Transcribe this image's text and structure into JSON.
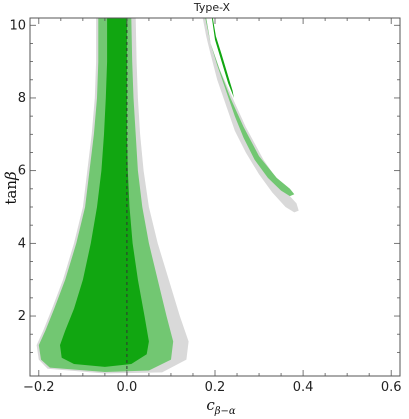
{
  "chart_data": {
    "type": "contour",
    "title": "Type-X",
    "xlabel": "c_{β−α}",
    "xlabel_main": "c",
    "xlabel_sub": "β−α",
    "ylabel": "tanβ",
    "ylabel_main": "tan",
    "ylabel_greek": "β",
    "xlim": [
      -0.22,
      0.62
    ],
    "ylim": [
      0.35,
      10.2
    ],
    "x_ticks": [
      -0.2,
      0.0,
      0.2,
      0.4,
      0.6
    ],
    "x_tick_labels": [
      "−0.2",
      "0.0",
      "0.2",
      "0.4",
      "0.6"
    ],
    "y_ticks": [
      2,
      4,
      6,
      8,
      10
    ],
    "y_tick_labels": [
      "2",
      "4",
      "6",
      "8",
      "10"
    ],
    "reference_line": {
      "x": 0.0,
      "style": "dashed"
    },
    "colors": {
      "outer_region": "#d9d9d9",
      "mid_region": "#72c772",
      "inner_region": "#11a611",
      "frame": "#555555",
      "reference_line": "#333333"
    },
    "regions": [
      {
        "name": "outer",
        "color_key": "outer_region",
        "polygons": [
          [
            [
              -0.07,
              10.2
            ],
            [
              -0.07,
              9
            ],
            [
              -0.073,
              8
            ],
            [
              -0.08,
              7
            ],
            [
              -0.09,
              6
            ],
            [
              -0.1,
              5
            ],
            [
              -0.12,
              4
            ],
            [
              -0.145,
              3
            ],
            [
              -0.17,
              2.2
            ],
            [
              -0.19,
              1.6
            ],
            [
              -0.205,
              1.2
            ],
            [
              -0.2,
              0.8
            ],
            [
              -0.18,
              0.55
            ],
            [
              -0.05,
              0.42
            ],
            [
              0.08,
              0.45
            ],
            [
              0.135,
              0.8
            ],
            [
              0.14,
              1.3
            ],
            [
              0.12,
              2
            ],
            [
              0.095,
              3
            ],
            [
              0.07,
              4
            ],
            [
              0.05,
              5
            ],
            [
              0.038,
              6
            ],
            [
              0.03,
              7
            ],
            [
              0.025,
              8
            ],
            [
              0.022,
              9
            ],
            [
              0.02,
              10.2
            ]
          ],
          [
            [
              0.18,
              10.2
            ],
            [
              0.19,
              9.5
            ],
            [
              0.21,
              8.8
            ],
            [
              0.24,
              8
            ],
            [
              0.27,
              7.2
            ],
            [
              0.31,
              6.3
            ],
            [
              0.35,
              5.6
            ],
            [
              0.37,
              5.3
            ],
            [
              0.385,
              5.1
            ],
            [
              0.39,
              4.9
            ],
            [
              0.38,
              4.85
            ],
            [
              0.36,
              5
            ],
            [
              0.33,
              5.4
            ],
            [
              0.3,
              5.9
            ],
            [
              0.27,
              6.5
            ],
            [
              0.245,
              7.1
            ],
            [
              0.225,
              7.8
            ],
            [
              0.205,
              8.5
            ],
            [
              0.19,
              9.2
            ],
            [
              0.18,
              9.7
            ],
            [
              0.172,
              10.2
            ]
          ]
        ]
      },
      {
        "name": "mid",
        "color_key": "mid_region",
        "polygons": [
          [
            [
              -0.065,
              10.2
            ],
            [
              -0.065,
              9
            ],
            [
              -0.068,
              8
            ],
            [
              -0.075,
              7
            ],
            [
              -0.085,
              6
            ],
            [
              -0.095,
              5
            ],
            [
              -0.115,
              4
            ],
            [
              -0.14,
              3
            ],
            [
              -0.165,
              2.2
            ],
            [
              -0.185,
              1.6
            ],
            [
              -0.2,
              1.2
            ],
            [
              -0.195,
              0.8
            ],
            [
              -0.175,
              0.58
            ],
            [
              -0.05,
              0.46
            ],
            [
              0.05,
              0.5
            ],
            [
              0.1,
              0.8
            ],
            [
              0.105,
              1.3
            ],
            [
              0.09,
              2
            ],
            [
              0.07,
              3
            ],
            [
              0.05,
              4
            ],
            [
              0.035,
              5
            ],
            [
              0.025,
              6
            ],
            [
              0.02,
              7
            ],
            [
              0.015,
              8
            ],
            [
              0.012,
              9
            ],
            [
              0.01,
              10.2
            ]
          ],
          [
            [
              0.18,
              10.2
            ],
            [
              0.19,
              9.5
            ],
            [
              0.21,
              8.8
            ],
            [
              0.235,
              8
            ],
            [
              0.265,
              7.2
            ],
            [
              0.3,
              6.4
            ],
            [
              0.34,
              5.8
            ],
            [
              0.37,
              5.5
            ],
            [
              0.38,
              5.35
            ],
            [
              0.37,
              5.3
            ],
            [
              0.35,
              5.45
            ],
            [
              0.32,
              5.8
            ],
            [
              0.29,
              6.3
            ],
            [
              0.265,
              6.9
            ],
            [
              0.245,
              7.5
            ],
            [
              0.225,
              8.2
            ],
            [
              0.205,
              8.9
            ],
            [
              0.19,
              9.5
            ],
            [
              0.178,
              10.2
            ]
          ]
        ]
      },
      {
        "name": "inner",
        "color_key": "inner_region",
        "polygons": [
          [
            [
              -0.045,
              10.2
            ],
            [
              -0.045,
              9
            ],
            [
              -0.048,
              8
            ],
            [
              -0.052,
              7
            ],
            [
              -0.058,
              6
            ],
            [
              -0.068,
              5
            ],
            [
              -0.082,
              4
            ],
            [
              -0.1,
              3
            ],
            [
              -0.12,
              2.2
            ],
            [
              -0.14,
              1.6
            ],
            [
              -0.152,
              1.2
            ],
            [
              -0.148,
              0.85
            ],
            [
              -0.12,
              0.68
            ],
            [
              -0.05,
              0.6
            ],
            [
              0.01,
              0.68
            ],
            [
              0.045,
              0.95
            ],
            [
              0.05,
              1.3
            ],
            [
              0.04,
              2
            ],
            [
              0.025,
              3
            ],
            [
              0.013,
              4
            ],
            [
              0.006,
              5
            ],
            [
              0.002,
              6
            ],
            [
              0.0,
              7
            ],
            [
              0.0,
              8
            ],
            [
              0.0,
              9
            ],
            [
              0.0,
              10.2
            ]
          ],
          [
            [
              0.193,
              10.2
            ],
            [
              0.2,
              9.6
            ],
            [
              0.215,
              9
            ],
            [
              0.23,
              8.4
            ],
            [
              0.24,
              8.1
            ],
            [
              0.243,
              8.0
            ],
            [
              0.24,
              8.2
            ],
            [
              0.23,
              8.6
            ],
            [
              0.215,
              9.2
            ],
            [
              0.202,
              9.7
            ],
            [
              0.195,
              10.2
            ]
          ]
        ]
      }
    ]
  }
}
